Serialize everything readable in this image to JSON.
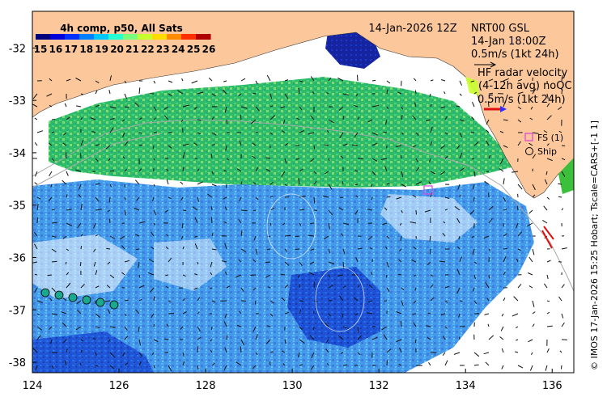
{
  "colorbar": {
    "title": "4h comp, p50, All Sats",
    "ticks": [
      "15",
      "16",
      "17",
      "18",
      "19",
      "20",
      "21",
      "22",
      "23",
      "24",
      "25",
      "26"
    ],
    "colors": [
      "#00007f",
      "#0000d8",
      "#0030ff",
      "#0080ff",
      "#00c8ff",
      "#26ffd0",
      "#7aff7c",
      "#c8ff2e",
      "#ffdc00",
      "#ff8c00",
      "#ff3000",
      "#b00000"
    ]
  },
  "header": {
    "date": "14-Jan-2026 12Z",
    "station": "NRT00 GSL",
    "obs_time": "14-Jan 18:00Z",
    "scale_text": "0.5m/s (1kt 24h)",
    "hf_title": "HF radar velocity",
    "hf_avg": "(4-12h avg) noQC",
    "hf_scale": "0.5m/s (1kt 24h)"
  },
  "legend": {
    "fs_label": "FS (1)",
    "ship_label": "Ship"
  },
  "axes": {
    "x_ticks": [
      "124",
      "126",
      "128",
      "130",
      "132",
      "134",
      "136"
    ],
    "y_ticks": [
      "-32",
      "-33",
      "-34",
      "-35",
      "-36",
      "-37",
      "-38"
    ]
  },
  "side_text": "© IMOS 17-Jan-2026 15:25 Hobart; Tscale=CARS+[-1 1]",
  "colors": {
    "land": "#fcc89b",
    "ocean": "#ffffff",
    "sst_green": "#22c05a",
    "sst_blue": "#1a7fe6",
    "fs_marker": "#e040e0",
    "ship_marker": "#1aa98e"
  }
}
